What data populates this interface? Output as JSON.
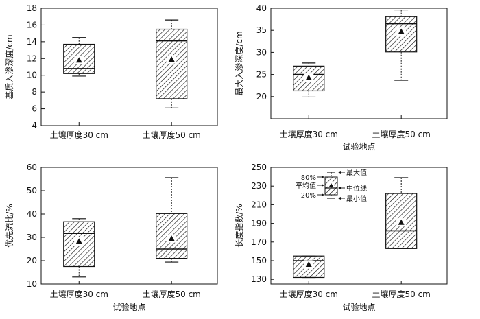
{
  "chart_data": [
    {
      "type": "box",
      "ylabel": "基质入渗深度/cm",
      "xlabel": "",
      "ylim": [
        4,
        18
      ],
      "yticks": [
        4,
        6,
        8,
        10,
        12,
        14,
        16,
        18
      ],
      "categories": [
        "土壤厚度30 cm",
        "土壤厚度50 cm"
      ],
      "boxes": [
        {
          "min": 9.9,
          "q20": 10.2,
          "median": 10.8,
          "q80": 13.7,
          "max": 14.5,
          "mean": 11.8
        },
        {
          "min": 6.1,
          "q20": 7.2,
          "median": 14.1,
          "q80": 15.5,
          "max": 16.6,
          "mean": 11.9
        }
      ]
    },
    {
      "type": "box",
      "ylabel": "最大入渗深度/cm",
      "xlabel": "试验地点",
      "ylim": [
        15,
        40
      ],
      "yticks": [
        20,
        25,
        30,
        35,
        40
      ],
      "categories": [
        "土壤厚度30 cm",
        "土壤厚度50 cm"
      ],
      "boxes": [
        {
          "min": 19.9,
          "q20": 21.3,
          "median": 25.0,
          "q80": 26.9,
          "max": 27.6,
          "mean": 24.3
        },
        {
          "min": 23.7,
          "q20": 30.1,
          "median": 36.5,
          "q80": 38.1,
          "max": 39.6,
          "mean": 34.7
        }
      ]
    },
    {
      "type": "box",
      "ylabel": "优先流比/%",
      "xlabel": "试验地点",
      "ylim": [
        10,
        60
      ],
      "yticks": [
        10,
        20,
        30,
        40,
        50,
        60
      ],
      "categories": [
        "土壤厚度30 cm",
        "土壤厚度50 cm"
      ],
      "boxes": [
        {
          "min": 13.0,
          "q20": 17.5,
          "median": 31.7,
          "q80": 36.7,
          "max": 38.0,
          "mean": 28.3
        },
        {
          "min": 19.4,
          "q20": 21.0,
          "median": 25.0,
          "q80": 40.2,
          "max": 55.6,
          "mean": 29.5
        }
      ]
    },
    {
      "type": "box",
      "ylabel": "长度指数/%",
      "xlabel": "试验地点",
      "ylim": [
        125,
        250
      ],
      "yticks": [
        130,
        150,
        170,
        190,
        210,
        230,
        250
      ],
      "categories": [
        "土壤厚度30 cm",
        "土壤厚度50 cm"
      ],
      "boxes": [
        {
          "min": 132,
          "q20": 132,
          "median": 150,
          "q80": 155,
          "max": 155,
          "mean": 146
        },
        {
          "min": 163,
          "q20": 163,
          "median": 182,
          "q80": 222,
          "max": 239,
          "mean": 191
        }
      ],
      "legend": {
        "p80": "80%",
        "mean": "平均值",
        "p20": "20%",
        "max": "最大值",
        "median": "中位线",
        "min": "最小值"
      }
    }
  ]
}
